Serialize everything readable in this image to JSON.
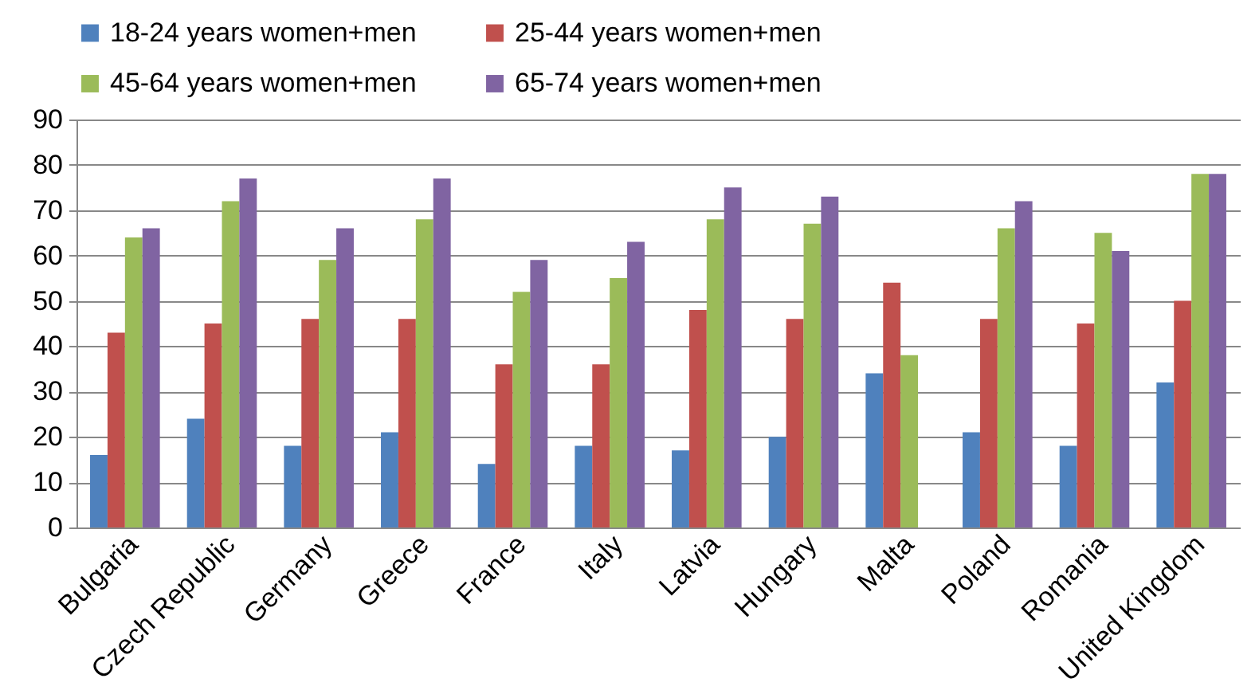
{
  "chart_data": {
    "type": "bar",
    "categories": [
      "Bulgaria",
      "Czech Republic",
      "Germany",
      "Greece",
      "France",
      "Italy",
      "Latvia",
      "Hungary",
      "Malta",
      "Poland",
      "Romania",
      "United Kingdom"
    ],
    "series": [
      {
        "name": "18-24 years women+men",
        "color": "#4f81bd",
        "values": [
          16,
          24,
          18,
          21,
          14,
          18,
          17,
          20,
          34,
          21,
          18,
          32
        ]
      },
      {
        "name": "25-44 years women+men",
        "color": "#c0504d",
        "values": [
          43,
          45,
          46,
          46,
          36,
          36,
          48,
          46,
          54,
          46,
          45,
          50
        ]
      },
      {
        "name": "45-64 years women+men",
        "color": "#9bbb59",
        "values": [
          64,
          72,
          59,
          68,
          52,
          55,
          68,
          67,
          38,
          66,
          65,
          78
        ]
      },
      {
        "name": "65-74 years women+men",
        "color": "#8064a2",
        "values": [
          66,
          77,
          66,
          77,
          59,
          63,
          75,
          73,
          null,
          72,
          61,
          78
        ]
      }
    ],
    "ylim": [
      0,
      90
    ],
    "yticks": [
      0,
      10,
      20,
      30,
      40,
      50,
      60,
      70,
      80,
      90
    ],
    "grid": "y",
    "legend": "top"
  }
}
